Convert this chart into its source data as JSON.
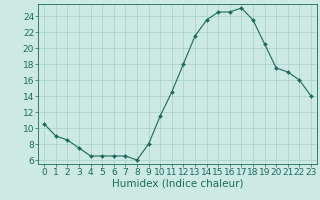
{
  "x": [
    0,
    1,
    2,
    3,
    4,
    5,
    6,
    7,
    8,
    9,
    10,
    11,
    12,
    13,
    14,
    15,
    16,
    17,
    18,
    19,
    20,
    21,
    22,
    23
  ],
  "y": [
    10.5,
    9.0,
    8.5,
    7.5,
    6.5,
    6.5,
    6.5,
    6.5,
    6.0,
    8.0,
    11.5,
    14.5,
    18.0,
    21.5,
    23.5,
    24.5,
    24.5,
    25.0,
    23.5,
    20.5,
    17.5,
    17.0,
    16.0,
    14.0
  ],
  "bg_color": "#cce9e4",
  "grid_color": "#aacfc8",
  "line_color": "#1a6b5a",
  "marker_color": "#1a6b5a",
  "xlabel": "Humidex (Indice chaleur)",
  "ylabel": "",
  "xlim": [
    -0.5,
    23.5
  ],
  "ylim": [
    5.5,
    25.5
  ],
  "yticks": [
    6,
    8,
    10,
    12,
    14,
    16,
    18,
    20,
    22,
    24
  ],
  "xticks": [
    0,
    1,
    2,
    3,
    4,
    5,
    6,
    7,
    8,
    9,
    10,
    11,
    12,
    13,
    14,
    15,
    16,
    17,
    18,
    19,
    20,
    21,
    22,
    23
  ],
  "tick_fontsize": 6.5,
  "xlabel_fontsize": 7.5
}
